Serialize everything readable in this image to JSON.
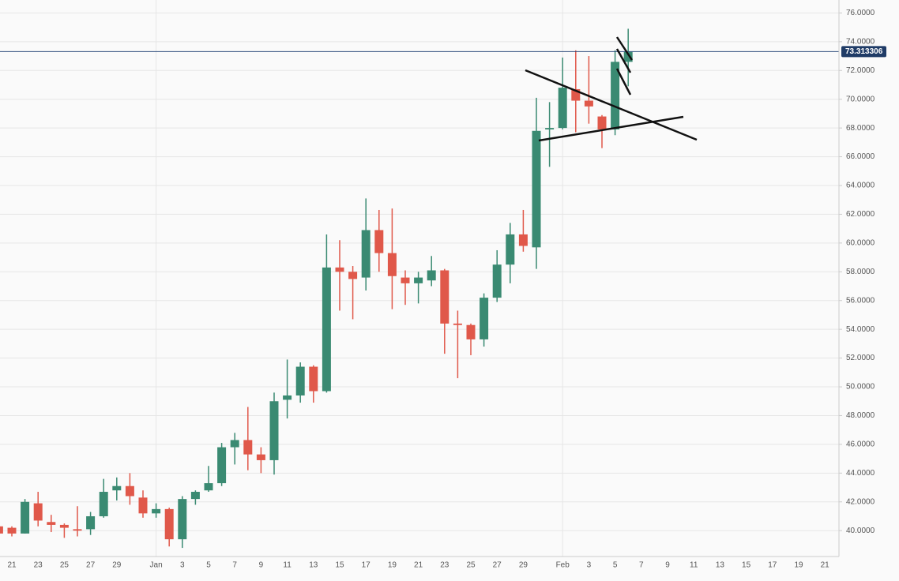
{
  "chart_data": {
    "type": "candlestick",
    "categories": [
      null,
      "21",
      null,
      "23",
      null,
      "25",
      null,
      "27",
      null,
      "29",
      null,
      null,
      "Jan",
      null,
      "3",
      null,
      "5",
      null,
      "7",
      null,
      "9",
      null,
      "11",
      null,
      "13",
      null,
      "15",
      null,
      "17",
      null,
      "19",
      null,
      "21",
      null,
      "23",
      null,
      "25",
      null,
      "27",
      null,
      "29",
      null,
      null,
      "Feb",
      null,
      "3",
      null,
      "5",
      null,
      "7",
      null,
      "9",
      null,
      "11",
      null,
      "13",
      null,
      "15",
      null,
      "17",
      null,
      "19",
      null,
      "21"
    ],
    "open": [
      40.3,
      40.2,
      39.8,
      41.9,
      40.6,
      40.4,
      40.1,
      40.1,
      41.0,
      42.8,
      43.1,
      42.3,
      41.2,
      41.5,
      39.4,
      42.2,
      42.8,
      43.3,
      45.8,
      46.3,
      45.3,
      44.9,
      49.1,
      49.4,
      51.4,
      49.7,
      58.3,
      58.0,
      57.6,
      60.9,
      59.3,
      57.6,
      57.2,
      57.4,
      58.1,
      54.4,
      54.3,
      53.3,
      56.2,
      58.5,
      60.6,
      59.7,
      67.9,
      68.0,
      70.7,
      69.9,
      68.8,
      67.9,
      72.6,
      null,
      null,
      null,
      null,
      null,
      null,
      null,
      null,
      null,
      null,
      null,
      null,
      null,
      null,
      null
    ],
    "high": [
      40.4,
      40.3,
      42.2,
      42.7,
      41.1,
      40.5,
      41.7,
      41.3,
      43.6,
      43.7,
      44.0,
      42.8,
      41.9,
      41.6,
      42.4,
      42.8,
      44.5,
      46.1,
      46.8,
      48.6,
      45.8,
      49.6,
      51.9,
      51.7,
      51.5,
      60.6,
      60.2,
      58.4,
      63.1,
      62.3,
      62.4,
      58.1,
      58.0,
      59.1,
      58.2,
      55.3,
      54.4,
      56.5,
      59.5,
      61.4,
      62.3,
      70.1,
      69.8,
      72.9,
      73.4,
      73.0,
      68.9,
      73.4,
      74.9,
      null,
      null,
      null,
      null,
      null,
      null,
      null,
      null,
      null,
      null,
      null,
      null,
      null,
      null,
      null
    ],
    "low": [
      39.7,
      39.6,
      39.8,
      40.3,
      39.9,
      39.5,
      39.6,
      39.7,
      40.9,
      42.1,
      41.8,
      40.9,
      40.9,
      38.9,
      38.8,
      41.8,
      42.7,
      43.1,
      44.6,
      44.2,
      44.0,
      43.9,
      47.8,
      48.9,
      48.9,
      49.6,
      55.3,
      54.7,
      56.7,
      58.0,
      55.4,
      55.7,
      55.8,
      57.0,
      52.3,
      50.6,
      52.2,
      52.8,
      55.9,
      57.2,
      59.4,
      58.2,
      65.3,
      67.9,
      67.7,
      68.3,
      66.6,
      67.5,
      70.9,
      null,
      null,
      null,
      null,
      null,
      null,
      null,
      null,
      null,
      null,
      null,
      null,
      null,
      null,
      null
    ],
    "close": [
      39.8,
      39.8,
      42.0,
      40.7,
      40.4,
      40.2,
      40.0,
      41.0,
      42.7,
      43.1,
      42.4,
      41.2,
      41.5,
      39.4,
      42.2,
      42.7,
      43.3,
      45.8,
      46.3,
      45.3,
      44.9,
      49.0,
      49.4,
      51.4,
      49.7,
      58.3,
      58.0,
      57.5,
      60.9,
      59.3,
      57.7,
      57.2,
      57.6,
      58.1,
      54.4,
      54.3,
      53.3,
      56.2,
      58.5,
      60.6,
      59.8,
      67.8,
      68.0,
      70.8,
      69.9,
      69.5,
      67.9,
      72.6,
      73.3,
      null,
      null,
      null,
      null,
      null,
      null,
      null,
      null,
      null,
      null,
      null,
      null,
      null,
      null,
      null
    ],
    "up_color": "#3a8a72",
    "down_color": "#e0584a",
    "last_price": 73.313306,
    "ylim": [
      38.2,
      76.9
    ],
    "yticks": [
      {
        "value": 40,
        "label": "40.0000"
      },
      {
        "value": 42,
        "label": "42.0000"
      },
      {
        "value": 44,
        "label": "44.0000"
      },
      {
        "value": 46,
        "label": "46.0000"
      },
      {
        "value": 48,
        "label": "48.0000"
      },
      {
        "value": 50,
        "label": "50.0000"
      },
      {
        "value": 52,
        "label": "52.0000"
      },
      {
        "value": 54,
        "label": "54.0000"
      },
      {
        "value": 56,
        "label": "56.0000"
      },
      {
        "value": 58,
        "label": "58.0000"
      },
      {
        "value": 60,
        "label": "60.0000"
      },
      {
        "value": 62,
        "label": "62.0000"
      },
      {
        "value": 64,
        "label": "64.0000"
      },
      {
        "value": 66,
        "label": "66.0000"
      },
      {
        "value": 68,
        "label": "68.0000"
      },
      {
        "value": 70,
        "label": "70.0000"
      },
      {
        "value": 72,
        "label": "72.0000"
      },
      {
        "value": 74,
        "label": "74.0000"
      },
      {
        "value": 76,
        "label": "76.0000"
      }
    ],
    "grid": true
  }
}
